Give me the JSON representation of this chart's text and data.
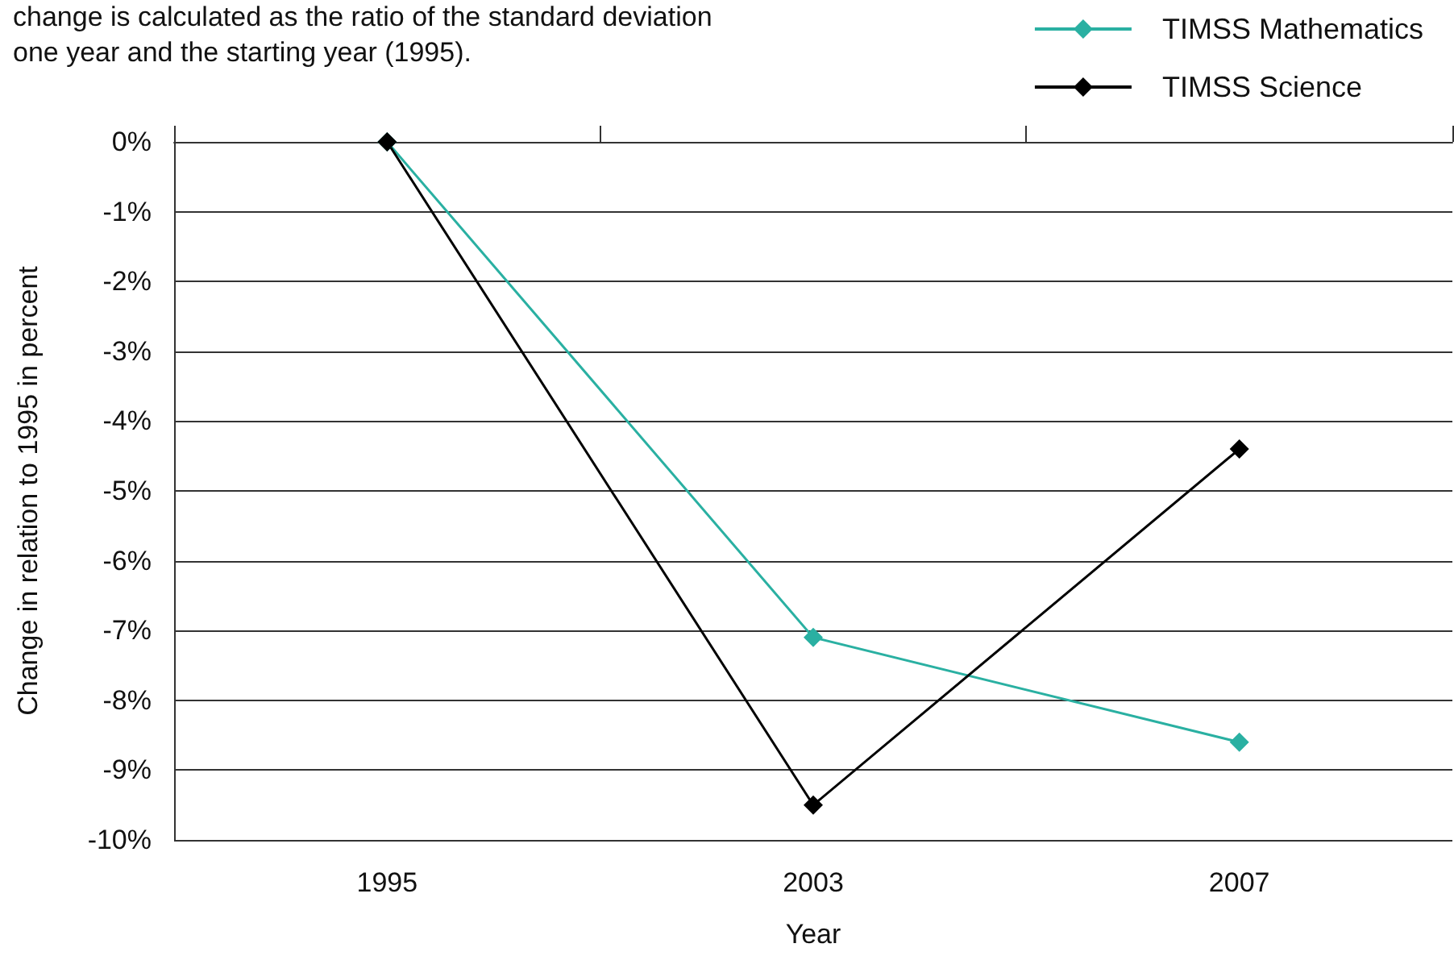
{
  "chart_data": {
    "type": "line",
    "xlabel": "Year",
    "ylabel": "Change in relation to 1995 in percent",
    "annotations": [
      "change is calculated as the ratio of the standard deviation",
      "one year and the starting year (1995)."
    ],
    "categories": [
      "1995",
      "2003",
      "2007"
    ],
    "series": [
      {
        "name": "TIMSS Mathematics",
        "color": "#2ab0a2",
        "values": [
          0,
          -7.1,
          -8.6
        ]
      },
      {
        "name": "TIMSS Science",
        "color": "#000000",
        "values": [
          0,
          -9.5,
          -4.4
        ]
      }
    ],
    "ylim": [
      -10,
      0
    ],
    "yticks": [
      {
        "value": -10,
        "label": "-10%"
      },
      {
        "value": -9,
        "label": "-9%"
      },
      {
        "value": -8,
        "label": "-8%"
      },
      {
        "value": -7,
        "label": "-7%"
      },
      {
        "value": -6,
        "label": "-6%"
      },
      {
        "value": -5,
        "label": "-5%"
      },
      {
        "value": -4,
        "label": "-4%"
      },
      {
        "value": -3,
        "label": "-3%"
      },
      {
        "value": -2,
        "label": "-2%"
      },
      {
        "value": -1,
        "label": "-1%"
      },
      {
        "value": 0,
        "label": "0%"
      }
    ],
    "grid": "y",
    "legend": "top right",
    "marker": "diamond",
    "line_style": "solid"
  }
}
